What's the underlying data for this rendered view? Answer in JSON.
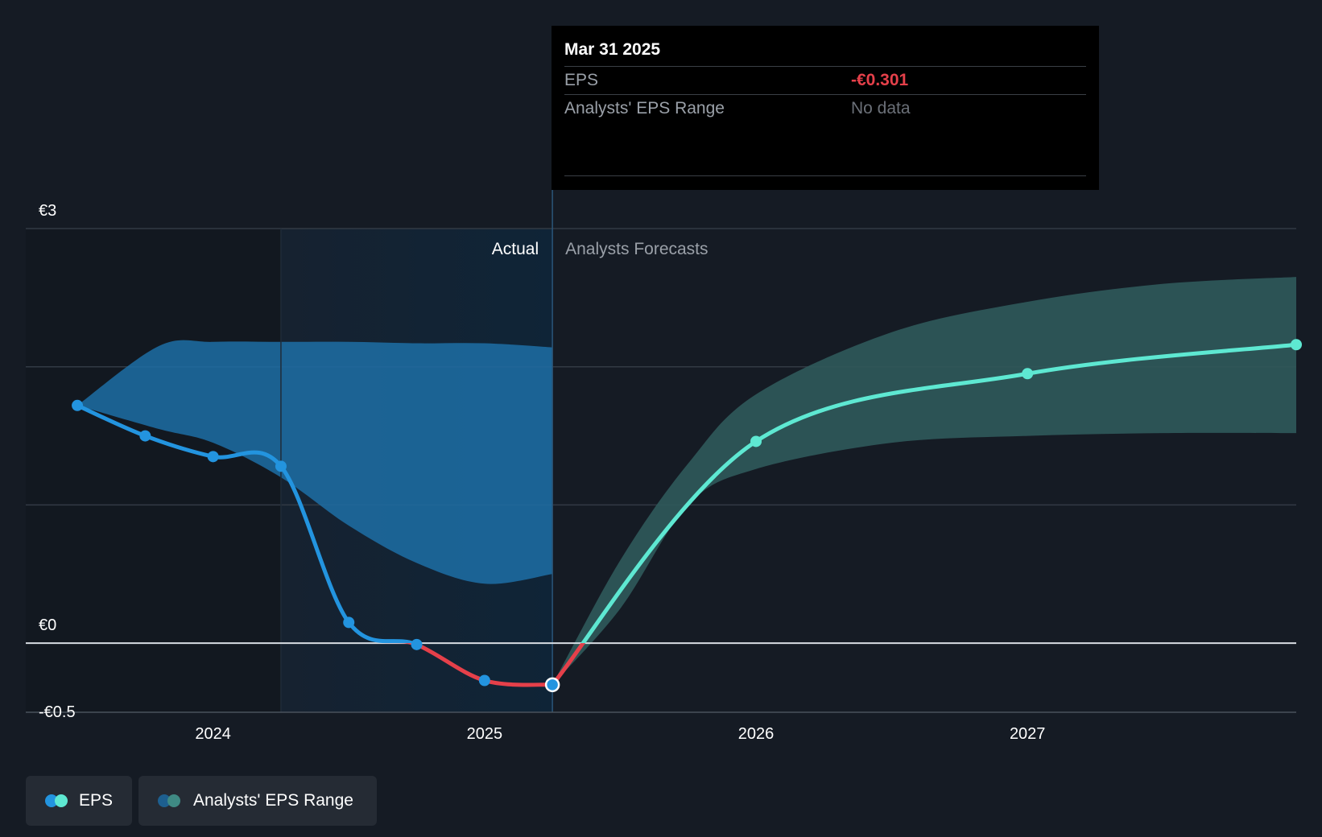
{
  "colors": {
    "background": "#151b24",
    "eps_actual": "#2394df",
    "eps_negative": "#e5404a",
    "eps_forecast": "#5ee8d2",
    "range_actual": "#1d6ea6",
    "range_forecast": "#2f5a5b",
    "grid": "#323a44"
  },
  "tooltip": {
    "date": "Mar 31 2025",
    "eps_label": "EPS",
    "eps_value": "-€0.301",
    "range_label": "Analysts' EPS Range",
    "range_value": "No data"
  },
  "legend": {
    "eps_label": "EPS",
    "range_label": "Analysts' EPS Range"
  },
  "chart_data": {
    "type": "line",
    "title": "",
    "xlabel": "",
    "ylabel": "",
    "xlim": [
      2023.31,
      2027.99
    ],
    "ylim": [
      -0.5,
      3
    ],
    "y_ticks": [
      {
        "value": 3,
        "label": "€3"
      },
      {
        "value": 0,
        "label": "€0"
      },
      {
        "value": -0.5,
        "label": "-€0.5"
      }
    ],
    "gridlines": [
      1,
      2
    ],
    "x_ticks": [
      {
        "value": 2024,
        "label": "2024"
      },
      {
        "value": 2025,
        "label": "2025"
      },
      {
        "value": 2026,
        "label": "2026"
      },
      {
        "value": 2027,
        "label": "2027"
      }
    ],
    "region_labels": {
      "actual": "Actual",
      "forecast": "Analysts Forecasts"
    },
    "divider_x": 2025.25,
    "past_window_start": 2024.25,
    "series": [
      {
        "name": "EPS",
        "segment": "actual",
        "points": [
          {
            "x": 2023.5,
            "y": 1.72
          },
          {
            "x": 2023.75,
            "y": 1.5
          },
          {
            "x": 2024.0,
            "y": 1.35
          },
          {
            "x": 2024.25,
            "y": 1.28
          },
          {
            "x": 2024.5,
            "y": 0.15
          },
          {
            "x": 2024.75,
            "y": -0.01
          },
          {
            "x": 2025.0,
            "y": -0.27
          },
          {
            "x": 2025.25,
            "y": -0.301
          }
        ]
      },
      {
        "name": "EPS",
        "segment": "forecast",
        "points": [
          {
            "x": 2025.25,
            "y": -0.301
          },
          {
            "x": 2026.0,
            "y": 1.46
          },
          {
            "x": 2027.0,
            "y": 1.95
          },
          {
            "x": 2027.99,
            "y": 2.16
          }
        ]
      }
    ],
    "range_actual": {
      "x": [
        2023.5,
        2023.8,
        2024.0,
        2024.25,
        2024.5,
        2024.75,
        2025.0,
        2025.25
      ],
      "high": [
        1.72,
        2.15,
        2.18,
        2.18,
        2.18,
        2.17,
        2.17,
        2.14
      ],
      "low": [
        1.72,
        1.55,
        1.45,
        1.2,
        0.85,
        0.58,
        0.43,
        0.5
      ]
    },
    "range_forecast": {
      "x": [
        2025.25,
        2025.5,
        2025.75,
        2026.0,
        2026.5,
        2027.0,
        2027.5,
        2027.99
      ],
      "high": [
        -0.301,
        0.6,
        1.3,
        1.8,
        2.25,
        2.47,
        2.6,
        2.65
      ],
      "low": [
        -0.301,
        0.25,
        1.0,
        1.26,
        1.45,
        1.5,
        1.52,
        1.52
      ]
    }
  }
}
